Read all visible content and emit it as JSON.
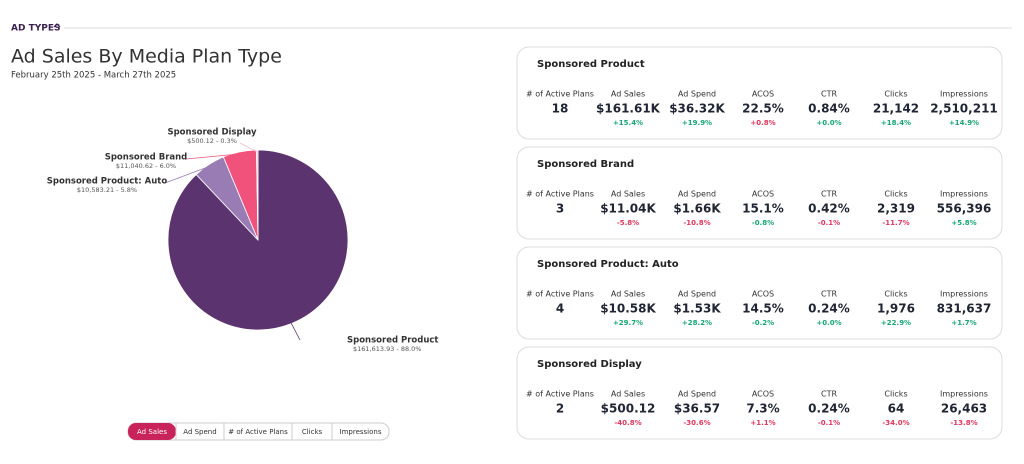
{
  "header": {
    "section": "AD TYPES",
    "title": "Ad Sales By Media Plan Type",
    "date_range": "February 25th 2025 - March 27th 2025"
  },
  "chart_data": {
    "type": "pie",
    "categories": [
      "Sponsored Product",
      "Sponsored Product: Auto",
      "Sponsored Brand",
      "Sponsored Display"
    ],
    "values": [
      161613.93,
      10583.21,
      11040.62,
      500.12
    ],
    "value_labels": [
      "$161,613.93 - 88.0%",
      "$10,583.21 - 5.8%",
      "$11,040.62 - 6.0%",
      "$500.12 - 0.3%"
    ],
    "colors": [
      "#5b336f",
      "#9a7cb4",
      "#f0527c",
      "#f6b9c9"
    ]
  },
  "tabs": [
    "Ad Sales",
    "Ad Spend",
    "# of Active Plans",
    "Clicks",
    "Impressions"
  ],
  "active_tab": "Ad Sales",
  "metric_labels": [
    "# of Active Plans",
    "Ad Sales",
    "Ad Spend",
    "ACOS",
    "CTR",
    "Clicks",
    "Impressions"
  ],
  "cards": [
    {
      "title": "Sponsored Product",
      "values": [
        "18",
        "$161.61K",
        "$36.32K",
        "22.5%",
        "0.84%",
        "21,142",
        "2,510,211"
      ],
      "changes": [
        {
          "label": "+15.4%",
          "color": "#17a673"
        },
        {
          "label": "+19.9%",
          "color": "#17a673"
        },
        {
          "label": "+0.8%",
          "color": "#e0365f"
        },
        {
          "label": "+0.0%",
          "color": "#17a673"
        },
        {
          "label": "+18.4%",
          "color": "#17a673"
        },
        {
          "label": "+14.9%",
          "color": "#17a673"
        }
      ]
    },
    {
      "title": "Sponsored Brand",
      "values": [
        "3",
        "$11.04K",
        "$1.66K",
        "15.1%",
        "0.42%",
        "2,319",
        "556,396"
      ],
      "changes": [
        {
          "label": "-5.8%",
          "color": "#e0365f"
        },
        {
          "label": "-10.8%",
          "color": "#e0365f"
        },
        {
          "label": "-0.8%",
          "color": "#17a673"
        },
        {
          "label": "-0.1%",
          "color": "#e0365f"
        },
        {
          "label": "-11.7%",
          "color": "#e0365f"
        },
        {
          "label": "+5.8%",
          "color": "#17a673"
        }
      ]
    },
    {
      "title": "Sponsored Product: Auto",
      "values": [
        "4",
        "$10.58K",
        "$1.53K",
        "14.5%",
        "0.24%",
        "1,976",
        "831,637"
      ],
      "changes": [
        {
          "label": "+29.7%",
          "color": "#17a673"
        },
        {
          "label": "+28.2%",
          "color": "#17a673"
        },
        {
          "label": "-0.2%",
          "color": "#17a673"
        },
        {
          "label": "+0.0%",
          "color": "#17a673"
        },
        {
          "label": "+22.9%",
          "color": "#17a673"
        },
        {
          "label": "+1.7%",
          "color": "#17a673"
        }
      ]
    },
    {
      "title": "Sponsored Display",
      "values": [
        "2",
        "$500.12",
        "$36.57",
        "7.3%",
        "0.24%",
        "64",
        "26,463"
      ],
      "changes": [
        {
          "label": "-40.8%",
          "color": "#e0365f"
        },
        {
          "label": "-30.6%",
          "color": "#e0365f"
        },
        {
          "label": "+1.1%",
          "color": "#e0365f"
        },
        {
          "label": "-0.1%",
          "color": "#e0365f"
        },
        {
          "label": "-34.0%",
          "color": "#e0365f"
        },
        {
          "label": "-13.8%",
          "color": "#e0365f"
        }
      ]
    }
  ]
}
